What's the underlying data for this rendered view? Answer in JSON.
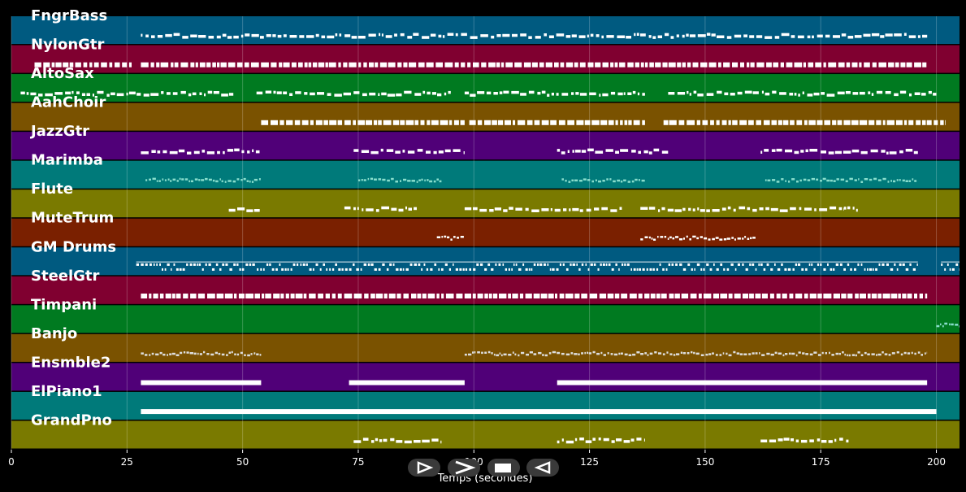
{
  "chart_data": {
    "type": "piano-roll",
    "xlabel": "Temps (secondes)",
    "xlim": [
      0,
      205
    ],
    "xticks": [
      0,
      25,
      50,
      75,
      100,
      125,
      150,
      175,
      200
    ],
    "grid": true,
    "tracks": [
      {
        "name": "FngrBass",
        "color": "#005a80",
        "note": "#ffffff",
        "segments": [
          [
            28,
            198
          ]
        ],
        "style": "sparse"
      },
      {
        "name": "NylonGtr",
        "color": "#800030",
        "note": "#ffffff",
        "segments": [
          [
            5,
            26
          ],
          [
            28,
            198
          ]
        ],
        "style": "dense"
      },
      {
        "name": "AltoSax",
        "color": "#007a20",
        "note": "#ffffff",
        "segments": [
          [
            2,
            48
          ],
          [
            53,
            95
          ],
          [
            98,
            137
          ],
          [
            142,
            200
          ]
        ],
        "style": "sparse"
      },
      {
        "name": "AahChoir",
        "color": "#7a5200",
        "note": "#ffffff",
        "segments": [
          [
            54,
            98
          ],
          [
            99,
            137
          ],
          [
            141,
            202
          ]
        ],
        "style": "dense"
      },
      {
        "name": "JazzGtr",
        "color": "#500078",
        "note": "#ffffff",
        "segments": [
          [
            28,
            54
          ],
          [
            74,
            98
          ],
          [
            118,
            142
          ],
          [
            162,
            196
          ]
        ],
        "style": "sparse"
      },
      {
        "name": "Marimba",
        "color": "#007a7a",
        "note": "#88ddcc",
        "segments": [
          [
            29,
            54
          ],
          [
            75,
            93
          ],
          [
            119,
            137
          ],
          [
            163,
            196
          ]
        ],
        "style": "fine"
      },
      {
        "name": "Flute",
        "color": "#7a7a00",
        "note": "#ffffff",
        "segments": [
          [
            47,
            54
          ],
          [
            72,
            88
          ],
          [
            98,
            132
          ],
          [
            136,
            180
          ],
          [
            180,
            183
          ]
        ],
        "style": "sparse"
      },
      {
        "name": "MuteTrum",
        "color": "#7a2000",
        "note": "#ffffff",
        "segments": [
          [
            92,
            98
          ],
          [
            136,
            161
          ]
        ],
        "style": "fine"
      },
      {
        "name": "GM Drums",
        "color": "#005a80",
        "note": "#ffffff",
        "segments": [
          [
            27,
            196
          ],
          [
            201,
            205
          ]
        ],
        "style": "drums"
      },
      {
        "name": "SteelGtr",
        "color": "#800030",
        "note": "#ffffff",
        "segments": [
          [
            28,
            198
          ]
        ],
        "style": "dense"
      },
      {
        "name": "Timpani",
        "color": "#007a20",
        "note": "#88ddcc",
        "segments": [
          [
            200,
            205
          ]
        ],
        "style": "fine"
      },
      {
        "name": "Banjo",
        "color": "#7a5200",
        "note": "#dddddd",
        "segments": [
          [
            28,
            54
          ],
          [
            98,
            198
          ]
        ],
        "style": "fine"
      },
      {
        "name": "Ensmble2",
        "color": "#500078",
        "note": "#ffffff",
        "segments": [
          [
            28,
            54
          ],
          [
            73,
            98
          ],
          [
            118,
            198
          ]
        ],
        "style": "bar"
      },
      {
        "name": "ElPiano1",
        "color": "#007a7a",
        "note": "#ffffff",
        "segments": [
          [
            28,
            200
          ]
        ],
        "style": "bar"
      },
      {
        "name": "GrandPno",
        "color": "#7a7a00",
        "note": "#ffffff",
        "segments": [
          [
            74,
            93
          ],
          [
            118,
            137
          ],
          [
            162,
            181
          ]
        ],
        "style": "sparse"
      }
    ]
  },
  "controls": {
    "play": "play-outline-icon",
    "forward": "forward-icon",
    "stop": "stop-icon",
    "back": "back-icon"
  }
}
